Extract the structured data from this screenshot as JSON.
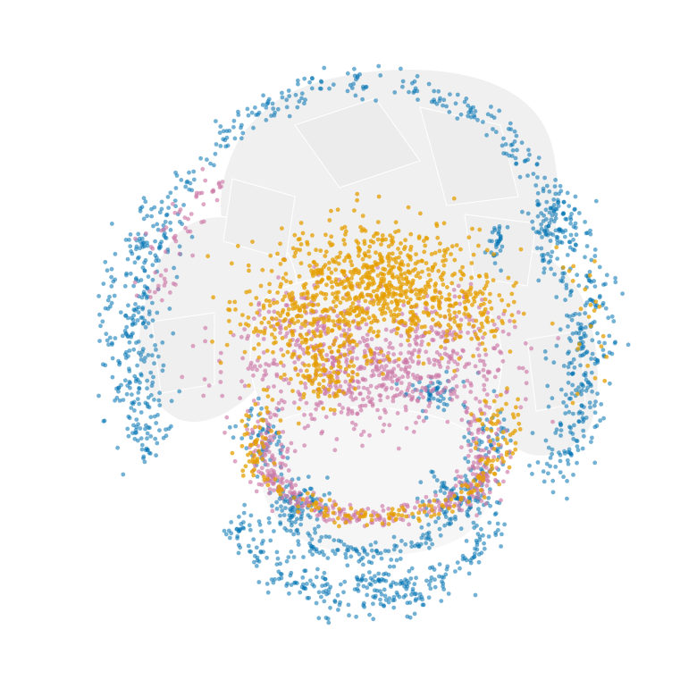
{
  "scene": {
    "background": "#ffffff",
    "mesh_fill": "#eeeeee",
    "mesh_stroke": "#ffffff"
  },
  "series": [
    {
      "color": "#E69F00",
      "opacity": 0.75
    },
    {
      "color": "#CC79A7",
      "opacity": 0.65
    },
    {
      "color": "#0072B2",
      "opacity": 0.55
    }
  ]
}
